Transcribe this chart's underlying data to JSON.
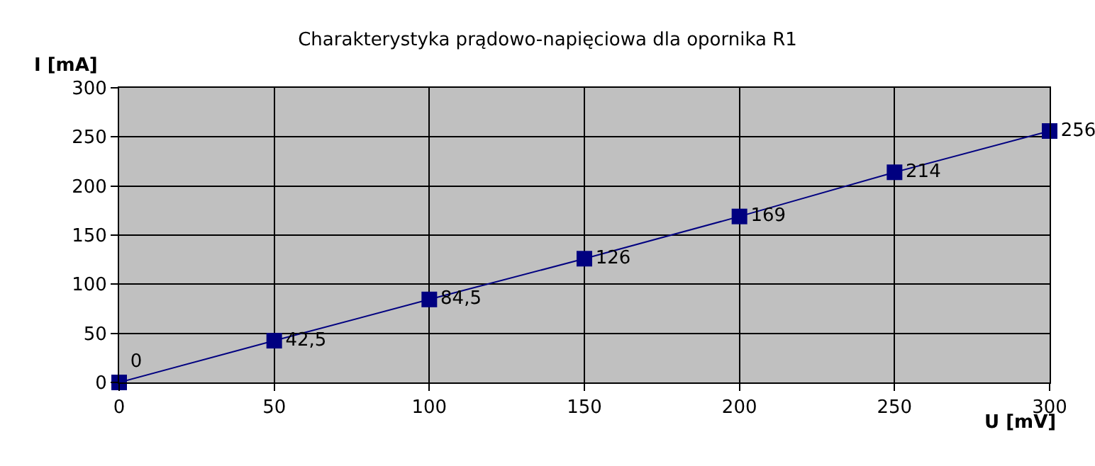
{
  "chart_data": {
    "type": "line",
    "title": "Charakterystyka prądowo-napięciowa dla opornika R1",
    "xlabel": "U [mV]",
    "ylabel": "I [mA]",
    "x": [
      0,
      50,
      100,
      150,
      200,
      250,
      300
    ],
    "series": [
      {
        "color": "#000080",
        "values": [
          0,
          42.5,
          84.5,
          126,
          169,
          214,
          256
        ],
        "value_labels": [
          "0",
          "42,5",
          "84,5",
          "126",
          "169",
          "214",
          "256"
        ]
      }
    ],
    "xlim": [
      0,
      300
    ],
    "xticks": [
      0,
      50,
      100,
      150,
      200,
      250,
      300
    ],
    "ylim": [
      0,
      300
    ],
    "yticks": [
      0,
      50,
      100,
      150,
      200,
      250,
      300
    ],
    "grid": true,
    "legend": false,
    "marker": "square",
    "line_style": "solid"
  }
}
